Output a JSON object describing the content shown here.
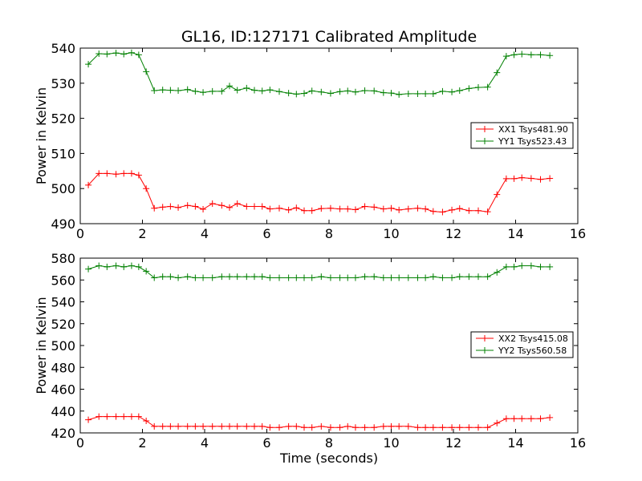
{
  "chart_data": [
    {
      "type": "line",
      "title": "GL16, ID:127171 Calibrated Amplitude",
      "xlabel": "",
      "ylabel": "Power in Kelvin",
      "xlim": [
        0,
        16
      ],
      "ylim": [
        490,
        540
      ],
      "xticks": [
        0,
        2,
        4,
        6,
        8,
        10,
        12,
        14,
        16
      ],
      "yticks": [
        490,
        500,
        510,
        520,
        530,
        540
      ],
      "legend_position": "center-right",
      "x": [
        0.26,
        0.6,
        0.86,
        1.15,
        1.4,
        1.65,
        1.88,
        2.12,
        2.38,
        2.65,
        2.9,
        3.15,
        3.45,
        3.7,
        3.95,
        4.25,
        4.55,
        4.8,
        5.05,
        5.35,
        5.6,
        5.85,
        6.1,
        6.4,
        6.7,
        6.95,
        7.2,
        7.45,
        7.75,
        8.05,
        8.35,
        8.6,
        8.85,
        9.15,
        9.45,
        9.75,
        10.0,
        10.25,
        10.55,
        10.85,
        11.1,
        11.35,
        11.65,
        11.95,
        12.2,
        12.5,
        12.8,
        13.1,
        13.4,
        13.7,
        13.95,
        14.2,
        14.5,
        14.8,
        15.1
      ],
      "series": [
        {
          "name": "XX1 Tsys481.90",
          "color": "#ff0000",
          "values": [
            501.0,
            504.3,
            504.3,
            504.1,
            504.3,
            504.3,
            503.8,
            500.0,
            494.4,
            494.7,
            494.9,
            494.6,
            495.2,
            494.9,
            494.1,
            495.7,
            495.2,
            494.6,
            495.7,
            494.9,
            494.9,
            494.9,
            494.2,
            494.4,
            493.9,
            494.5,
            493.7,
            493.7,
            494.3,
            494.4,
            494.2,
            494.2,
            494.0,
            494.9,
            494.7,
            494.2,
            494.4,
            493.9,
            494.2,
            494.4,
            494.2,
            493.5,
            493.3,
            493.9,
            494.3,
            493.7,
            493.7,
            493.4,
            498.3,
            502.8,
            502.8,
            503.1,
            502.9,
            502.6,
            502.9
          ]
        },
        {
          "name": "YY1 Tsys523.43",
          "color": "#008000",
          "values": [
            535.4,
            538.4,
            538.3,
            538.6,
            538.3,
            538.7,
            538.1,
            533.3,
            527.9,
            528.1,
            528.0,
            527.9,
            528.2,
            527.7,
            527.4,
            527.7,
            527.7,
            529.2,
            528.0,
            528.6,
            528.0,
            527.8,
            528.1,
            527.6,
            527.2,
            526.9,
            527.1,
            527.8,
            527.5,
            527.1,
            527.6,
            527.8,
            527.5,
            527.9,
            527.8,
            527.3,
            527.2,
            526.8,
            527.0,
            527.0,
            527.0,
            527.0,
            527.7,
            527.5,
            527.9,
            528.5,
            528.8,
            528.9,
            533.0,
            537.7,
            538.1,
            538.3,
            538.1,
            538.1,
            537.9
          ]
        }
      ]
    },
    {
      "type": "line",
      "title": "",
      "xlabel": "Time (seconds)",
      "ylabel": "Power in Kelvin",
      "xlim": [
        0,
        16
      ],
      "ylim": [
        420,
        580
      ],
      "xticks": [
        0,
        2,
        4,
        6,
        8,
        10,
        12,
        14,
        16
      ],
      "yticks": [
        420,
        440,
        460,
        480,
        500,
        520,
        540,
        560,
        580
      ],
      "legend_position": "center-right",
      "x": [
        0.26,
        0.6,
        0.86,
        1.15,
        1.4,
        1.65,
        1.88,
        2.12,
        2.38,
        2.65,
        2.9,
        3.15,
        3.45,
        3.7,
        3.95,
        4.25,
        4.55,
        4.8,
        5.05,
        5.35,
        5.6,
        5.85,
        6.1,
        6.4,
        6.7,
        6.95,
        7.2,
        7.45,
        7.75,
        8.05,
        8.35,
        8.6,
        8.85,
        9.15,
        9.45,
        9.75,
        10.0,
        10.25,
        10.55,
        10.85,
        11.1,
        11.35,
        11.65,
        11.95,
        12.2,
        12.5,
        12.8,
        13.1,
        13.4,
        13.7,
        13.95,
        14.2,
        14.5,
        14.8,
        15.1
      ],
      "series": [
        {
          "name": "XX2 Tsys415.08",
          "color": "#ff0000",
          "values": [
            432,
            435,
            435,
            435,
            435,
            435,
            435,
            431,
            426,
            426,
            426,
            426,
            426,
            426,
            426,
            426,
            426,
            426,
            426,
            426,
            426,
            426,
            425,
            425,
            426,
            426,
            425,
            425,
            426,
            425,
            425,
            426,
            425,
            425,
            425,
            426,
            426,
            426,
            426,
            425,
            425,
            425,
            425,
            425,
            425,
            425,
            425,
            425,
            429,
            433,
            433,
            433,
            433,
            433,
            434
          ]
        },
        {
          "name": "YY2 Tsys560.58",
          "color": "#008000",
          "values": [
            570,
            573,
            572,
            573,
            572,
            573,
            572,
            568,
            562,
            563,
            563,
            562,
            563,
            562,
            562,
            562,
            563,
            563,
            563,
            563,
            563,
            563,
            562,
            562,
            562,
            562,
            562,
            562,
            563,
            562,
            562,
            562,
            562,
            563,
            563,
            562,
            562,
            562,
            562,
            562,
            562,
            563,
            562,
            562,
            563,
            563,
            563,
            563,
            567,
            572,
            572,
            573,
            573,
            572,
            572
          ]
        }
      ]
    }
  ]
}
